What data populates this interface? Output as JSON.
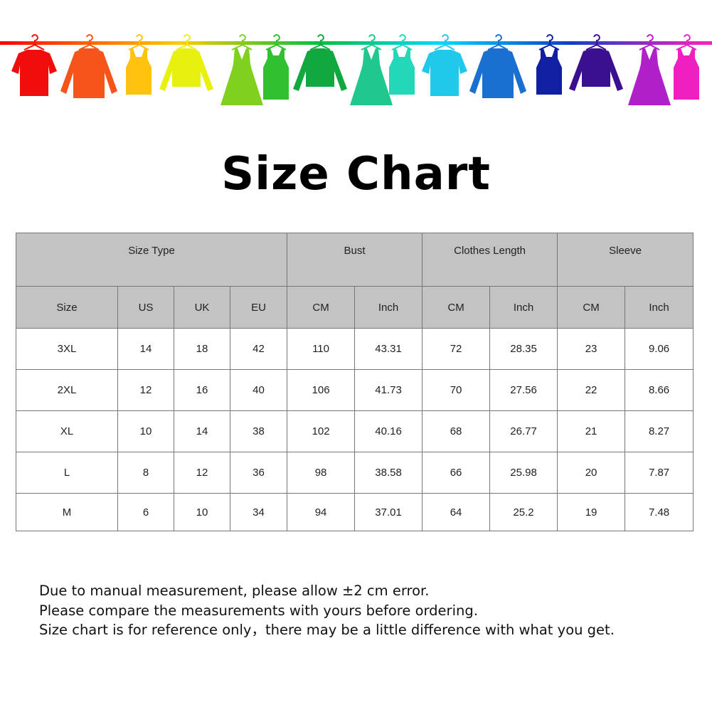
{
  "header": {
    "rail_colors": [
      "#ff0000",
      "#ffcc00",
      "#00c040",
      "#00d8ff",
      "#1040c0",
      "#ff20c0"
    ],
    "clothes": [
      {
        "icon": "tshirt-icon",
        "color": "#f20d0d"
      },
      {
        "icon": "shirt-icon",
        "color": "#f5551a"
      },
      {
        "icon": "tank-top-icon",
        "color": "#ffc20e"
      },
      {
        "icon": "sweater-icon",
        "color": "#e8f010"
      },
      {
        "icon": "dress-icon",
        "color": "#80d020"
      },
      {
        "icon": "belted-tank-icon",
        "color": "#30c030"
      },
      {
        "icon": "sweater-icon",
        "color": "#12a840"
      },
      {
        "icon": "dress-icon",
        "color": "#20c890"
      },
      {
        "icon": "tank-top-icon",
        "color": "#22d8b8"
      },
      {
        "icon": "tshirt-icon",
        "color": "#20c8ea"
      },
      {
        "icon": "shirt-icon",
        "color": "#1a70d0"
      },
      {
        "icon": "tank-top-icon",
        "color": "#1020a0"
      },
      {
        "icon": "sweater-icon",
        "color": "#3a1090"
      },
      {
        "icon": "dress-icon",
        "color": "#b020c8"
      },
      {
        "icon": "belted-tank-icon",
        "color": "#f020c0"
      }
    ]
  },
  "title": "Size Chart",
  "table": {
    "groups": [
      "Size Type",
      "Bust",
      "Clothes Length",
      "Sleeve"
    ],
    "columns": [
      "Size",
      "US",
      "UK",
      "EU",
      "CM",
      "Inch",
      "CM",
      "Inch",
      "CM",
      "Inch"
    ],
    "rows": [
      [
        "3XL",
        "14",
        "18",
        "42",
        "110",
        "43.31",
        "72",
        "28.35",
        "23",
        "9.06"
      ],
      [
        "2XL",
        "12",
        "16",
        "40",
        "106",
        "41.73",
        "70",
        "27.56",
        "22",
        "8.66"
      ],
      [
        "XL",
        "10",
        "14",
        "38",
        "102",
        "40.16",
        "68",
        "26.77",
        "21",
        "8.27"
      ],
      [
        "L",
        "8",
        "12",
        "36",
        "98",
        "38.58",
        "66",
        "25.98",
        "20",
        "7.87"
      ],
      [
        "M",
        "6",
        "10",
        "34",
        "94",
        "37.01",
        "64",
        "25.2",
        "19",
        "7.48"
      ]
    ]
  },
  "notes": [
    "Due to manual measurement, please allow ±2 cm error.",
    "Please compare the measurements with yours before ordering.",
    "Size chart is for reference only，there may be a little difference with what you get."
  ]
}
